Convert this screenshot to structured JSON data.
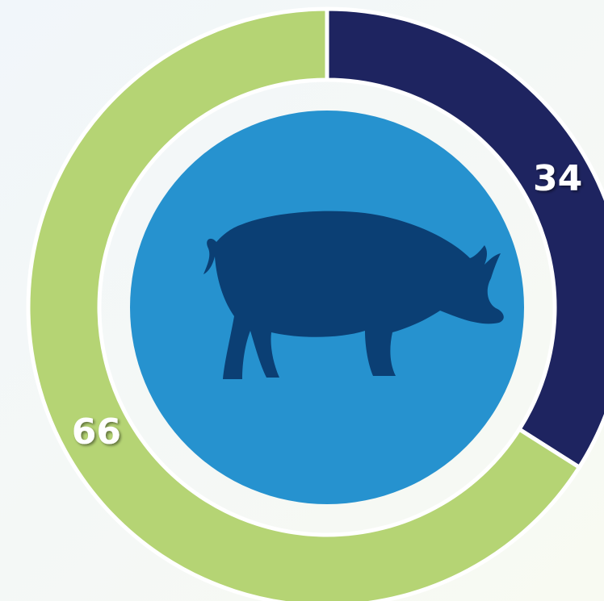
{
  "chart_data": {
    "type": "donut",
    "values": [
      34,
      66
    ],
    "colors": [
      "#1e2460",
      "#b5d474"
    ]
  }
}
